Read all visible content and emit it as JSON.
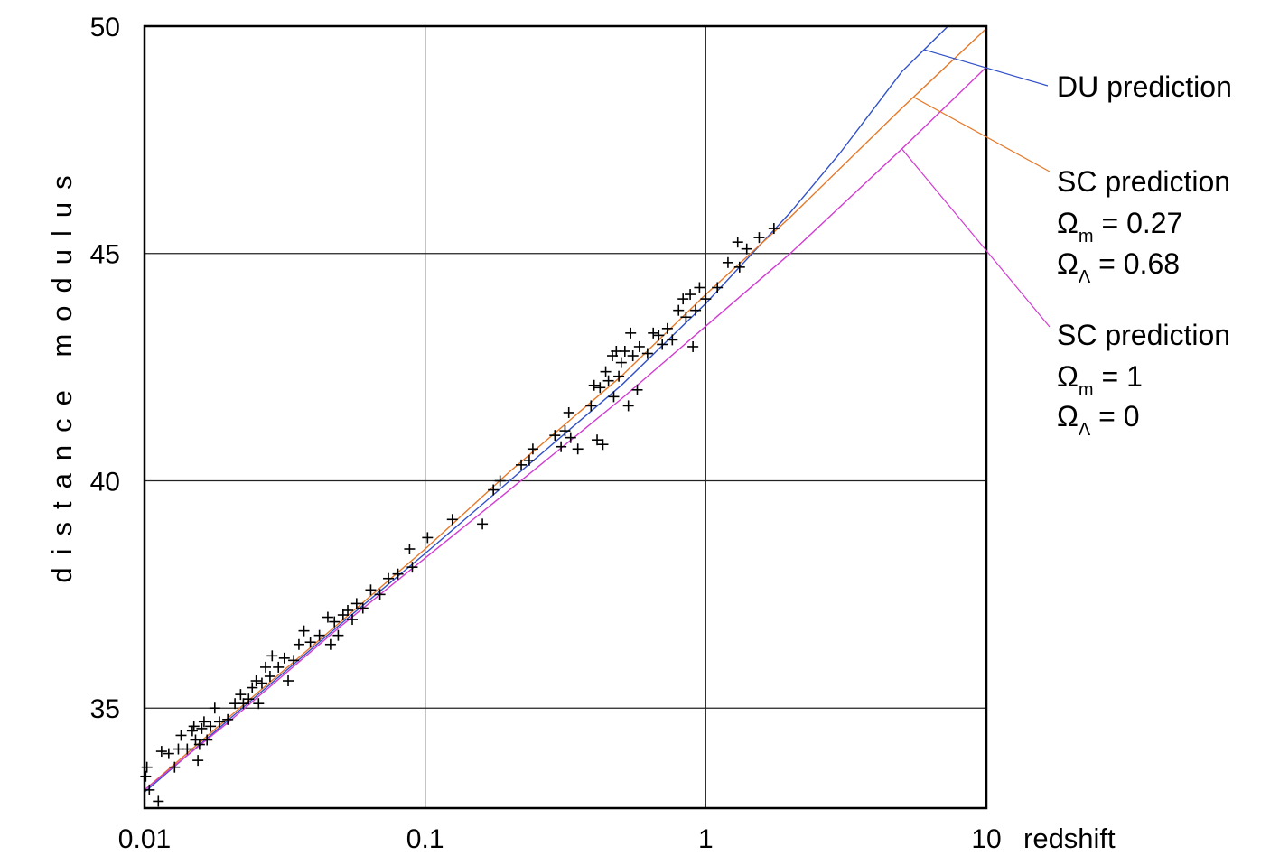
{
  "chart_data": {
    "type": "scatter",
    "xlabel": "redshift",
    "ylabel": "distance modulus",
    "xscale": "log",
    "xlim": [
      0.01,
      10
    ],
    "ylim": [
      32.8,
      50
    ],
    "x_ticks": [
      0.01,
      0.1,
      1,
      10
    ],
    "x_tick_labels": [
      "0.01",
      "0.1",
      "1",
      "10"
    ],
    "y_ticks": [
      35,
      40,
      45,
      50
    ],
    "y_tick_labels": [
      "35",
      "40",
      "45",
      "50"
    ],
    "grid": true,
    "series": [
      {
        "name": "DU prediction",
        "kind": "line",
        "color": "#3050c8",
        "x": [
          0.01,
          0.02,
          0.05,
          0.1,
          0.2,
          0.5,
          1,
          2,
          3,
          5,
          7.3
        ],
        "y": [
          33.15,
          34.75,
          36.85,
          38.4,
          40.0,
          42.1,
          43.9,
          45.9,
          47.2,
          49.0,
          50.0
        ]
      },
      {
        "name": "SC prediction Ωm = 0.27 ΩΛ = 0.68",
        "kind": "line",
        "color": "#e67828",
        "x": [
          0.01,
          0.02,
          0.05,
          0.1,
          0.2,
          0.5,
          1,
          2,
          5,
          10
        ],
        "y": [
          33.2,
          34.8,
          36.9,
          38.5,
          40.2,
          42.3,
          44.1,
          45.8,
          48.2,
          49.95
        ]
      },
      {
        "name": "SC prediction Ωm = 1 ΩΛ = 0",
        "kind": "line",
        "color": "#d23cd2",
        "x": [
          0.01,
          0.02,
          0.05,
          0.1,
          0.2,
          0.5,
          1,
          2,
          5,
          10
        ],
        "y": [
          33.2,
          34.7,
          36.8,
          38.3,
          39.8,
          41.8,
          43.4,
          45.0,
          47.3,
          49.1
        ]
      },
      {
        "name": "",
        "kind": "scatter",
        "marker": "+",
        "color": "#000000",
        "points": [
          [
            0.0102,
            33.7
          ],
          [
            0.0101,
            33.5
          ],
          [
            0.0104,
            33.2
          ],
          [
            0.0112,
            32.95
          ],
          [
            0.0115,
            34.05
          ],
          [
            0.0122,
            34.0
          ],
          [
            0.0128,
            33.7
          ],
          [
            0.0132,
            34.1
          ],
          [
            0.0135,
            34.4
          ],
          [
            0.0142,
            34.1
          ],
          [
            0.0148,
            34.5
          ],
          [
            0.015,
            34.6
          ],
          [
            0.0152,
            34.3
          ],
          [
            0.0155,
            33.85
          ],
          [
            0.0157,
            34.2
          ],
          [
            0.016,
            34.55
          ],
          [
            0.0163,
            34.7
          ],
          [
            0.0167,
            34.3
          ],
          [
            0.0172,
            34.6
          ],
          [
            0.0178,
            35.0
          ],
          [
            0.0185,
            34.7
          ],
          [
            0.0198,
            34.75
          ],
          [
            0.021,
            35.1
          ],
          [
            0.022,
            35.3
          ],
          [
            0.0225,
            35.1
          ],
          [
            0.0235,
            35.2
          ],
          [
            0.0242,
            35.45
          ],
          [
            0.025,
            35.6
          ],
          [
            0.0255,
            35.1
          ],
          [
            0.0262,
            35.55
          ],
          [
            0.027,
            35.9
          ],
          [
            0.028,
            35.7
          ],
          [
            0.0285,
            36.15
          ],
          [
            0.03,
            35.9
          ],
          [
            0.0315,
            36.1
          ],
          [
            0.0325,
            35.6
          ],
          [
            0.034,
            36.05
          ],
          [
            0.0355,
            36.4
          ],
          [
            0.037,
            36.7
          ],
          [
            0.039,
            36.45
          ],
          [
            0.042,
            36.6
          ],
          [
            0.045,
            37.0
          ],
          [
            0.046,
            36.4
          ],
          [
            0.0475,
            36.9
          ],
          [
            0.049,
            36.6
          ],
          [
            0.051,
            37.05
          ],
          [
            0.053,
            37.15
          ],
          [
            0.055,
            36.95
          ],
          [
            0.057,
            37.3
          ],
          [
            0.06,
            37.2
          ],
          [
            0.064,
            37.6
          ],
          [
            0.069,
            37.5
          ],
          [
            0.074,
            37.85
          ],
          [
            0.08,
            37.95
          ],
          [
            0.088,
            38.5
          ],
          [
            0.09,
            38.1
          ],
          [
            0.102,
            38.75
          ],
          [
            0.125,
            39.15
          ],
          [
            0.16,
            39.05
          ],
          [
            0.175,
            39.8
          ],
          [
            0.185,
            40.0
          ],
          [
            0.22,
            40.35
          ],
          [
            0.235,
            40.45
          ],
          [
            0.242,
            40.7
          ],
          [
            0.29,
            41.0
          ],
          [
            0.305,
            40.75
          ],
          [
            0.315,
            41.1
          ],
          [
            0.325,
            41.5
          ],
          [
            0.33,
            40.95
          ],
          [
            0.35,
            40.7
          ],
          [
            0.39,
            41.65
          ],
          [
            0.4,
            42.1
          ],
          [
            0.41,
            40.9
          ],
          [
            0.42,
            42.05
          ],
          [
            0.43,
            40.8
          ],
          [
            0.44,
            42.4
          ],
          [
            0.45,
            42.2
          ],
          [
            0.465,
            42.75
          ],
          [
            0.47,
            41.85
          ],
          [
            0.48,
            42.85
          ],
          [
            0.49,
            42.3
          ],
          [
            0.5,
            42.6
          ],
          [
            0.515,
            42.85
          ],
          [
            0.53,
            41.65
          ],
          [
            0.54,
            43.25
          ],
          [
            0.55,
            42.75
          ],
          [
            0.57,
            42.0
          ],
          [
            0.58,
            42.95
          ],
          [
            0.62,
            42.8
          ],
          [
            0.65,
            43.25
          ],
          [
            0.68,
            43.2
          ],
          [
            0.7,
            43.0
          ],
          [
            0.73,
            43.35
          ],
          [
            0.76,
            43.1
          ],
          [
            0.8,
            43.75
          ],
          [
            0.83,
            44.0
          ],
          [
            0.85,
            43.6
          ],
          [
            0.88,
            44.1
          ],
          [
            0.9,
            42.95
          ],
          [
            0.92,
            43.75
          ],
          [
            0.95,
            44.25
          ],
          [
            1.0,
            44.0
          ],
          [
            1.1,
            44.25
          ],
          [
            1.2,
            44.8
          ],
          [
            1.3,
            45.25
          ],
          [
            1.32,
            44.7
          ],
          [
            1.4,
            45.1
          ],
          [
            1.55,
            45.35
          ],
          [
            1.75,
            45.55
          ]
        ]
      }
    ],
    "annotations": {
      "du": {
        "text": "DU prediction"
      },
      "sc1": {
        "line1": "SC prediction",
        "om_symbol": "Ω",
        "om_sub": "m",
        "om_value": " = 0.27",
        "ol_symbol": "Ω",
        "ol_sub": "Λ",
        "ol_value": " = 0.68"
      },
      "sc2": {
        "line1": "SC prediction",
        "om_symbol": "Ω",
        "om_sub": "m",
        "om_value": " = 1",
        "ol_symbol": "Ω",
        "ol_sub": "Λ",
        "ol_value": " = 0"
      }
    }
  }
}
